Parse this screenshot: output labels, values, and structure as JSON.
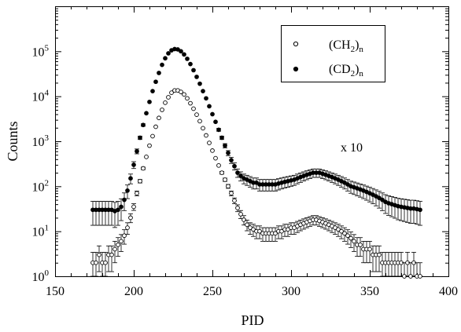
{
  "chart_data": {
    "type": "scatter",
    "title": "",
    "xlabel": "PID",
    "ylabel": "Counts",
    "xlim": [
      150,
      400
    ],
    "ylim": [
      1,
      1000000
    ],
    "yscale": "log",
    "x_ticks": [
      150,
      200,
      250,
      300,
      350,
      400
    ],
    "y_tick_exponents": [
      0,
      1,
      2,
      3,
      4,
      5
    ],
    "y_tick_base": "10",
    "grid": false,
    "legend": {
      "placement": "top-right",
      "entries": [
        {
          "main": "(CH",
          "sub": "2",
          "tail": ")",
          "tail_sub": "n",
          "marker": "open-circle"
        },
        {
          "main": "(CD",
          "sub": "2",
          "tail": ")",
          "tail_sub": "n",
          "marker": "filled-circle"
        }
      ]
    },
    "annotation": "x 10",
    "series": [
      {
        "marker": "filled-circle",
        "color": "#000000",
        "points": [
          [
            174,
            30
          ],
          [
            176,
            30
          ],
          [
            178,
            30
          ],
          [
            180,
            30
          ],
          [
            182,
            30
          ],
          [
            184,
            30
          ],
          [
            186,
            30
          ],
          [
            188,
            28
          ],
          [
            190,
            30
          ],
          [
            192,
            35
          ],
          [
            194,
            50
          ],
          [
            196,
            80
          ],
          [
            198,
            150
          ],
          [
            200,
            300
          ],
          [
            202,
            600
          ],
          [
            204,
            1200
          ],
          [
            206,
            2300
          ],
          [
            208,
            4200
          ],
          [
            210,
            7500
          ],
          [
            212,
            13000
          ],
          [
            214,
            21000
          ],
          [
            216,
            33000
          ],
          [
            218,
            50000
          ],
          [
            220,
            70000
          ],
          [
            222,
            90000
          ],
          [
            224,
            105000
          ],
          [
            226,
            112000
          ],
          [
            228,
            110000
          ],
          [
            230,
            100000
          ],
          [
            232,
            85000
          ],
          [
            234,
            68000
          ],
          [
            236,
            52000
          ],
          [
            238,
            38000
          ],
          [
            240,
            27000
          ],
          [
            242,
            19000
          ],
          [
            244,
            13000
          ],
          [
            246,
            9000
          ],
          [
            248,
            6000
          ],
          [
            250,
            4000
          ],
          [
            252,
            2700
          ],
          [
            254,
            1800
          ],
          [
            256,
            1200
          ],
          [
            258,
            800
          ],
          [
            260,
            550
          ],
          [
            262,
            380
          ],
          [
            264,
            280
          ],
          [
            266,
            200
          ],
          [
            268,
            170
          ],
          [
            270,
            150
          ],
          [
            272,
            140
          ],
          [
            274,
            130
          ],
          [
            276,
            120
          ],
          [
            278,
            120
          ],
          [
            280,
            110
          ],
          [
            282,
            110
          ],
          [
            284,
            110
          ],
          [
            286,
            110
          ],
          [
            288,
            110
          ],
          [
            290,
            110
          ],
          [
            292,
            115
          ],
          [
            294,
            120
          ],
          [
            296,
            125
          ],
          [
            298,
            130
          ],
          [
            300,
            135
          ],
          [
            302,
            140
          ],
          [
            304,
            150
          ],
          [
            306,
            160
          ],
          [
            308,
            170
          ],
          [
            310,
            180
          ],
          [
            312,
            190
          ],
          [
            314,
            200
          ],
          [
            316,
            200
          ],
          [
            318,
            200
          ],
          [
            320,
            190
          ],
          [
            322,
            180
          ],
          [
            324,
            170
          ],
          [
            326,
            160
          ],
          [
            328,
            150
          ],
          [
            330,
            140
          ],
          [
            332,
            130
          ],
          [
            334,
            120
          ],
          [
            336,
            110
          ],
          [
            338,
            100
          ],
          [
            340,
            95
          ],
          [
            342,
            90
          ],
          [
            344,
            85
          ],
          [
            346,
            80
          ],
          [
            348,
            75
          ],
          [
            350,
            70
          ],
          [
            352,
            65
          ],
          [
            354,
            60
          ],
          [
            356,
            55
          ],
          [
            358,
            50
          ],
          [
            360,
            45
          ],
          [
            362,
            42
          ],
          [
            364,
            40
          ],
          [
            366,
            38
          ],
          [
            368,
            36
          ],
          [
            370,
            35
          ],
          [
            372,
            34
          ],
          [
            374,
            33
          ],
          [
            376,
            32
          ],
          [
            378,
            32
          ],
          [
            380,
            31
          ],
          [
            382,
            30
          ]
        ]
      },
      {
        "marker": "open-circle",
        "color": "#000000",
        "points": [
          [
            174,
            2
          ],
          [
            176,
            2
          ],
          [
            178,
            3
          ],
          [
            180,
            2
          ],
          [
            182,
            2
          ],
          [
            184,
            3
          ],
          [
            186,
            3
          ],
          [
            188,
            4
          ],
          [
            190,
            5
          ],
          [
            192,
            6
          ],
          [
            194,
            8
          ],
          [
            196,
            12
          ],
          [
            198,
            20
          ],
          [
            200,
            35
          ],
          [
            202,
            70
          ],
          [
            204,
            130
          ],
          [
            206,
            250
          ],
          [
            208,
            450
          ],
          [
            210,
            800
          ],
          [
            212,
            1300
          ],
          [
            214,
            2100
          ],
          [
            216,
            3300
          ],
          [
            218,
            5000
          ],
          [
            220,
            7200
          ],
          [
            222,
            9500
          ],
          [
            224,
            12000
          ],
          [
            226,
            13500
          ],
          [
            228,
            13500
          ],
          [
            230,
            12500
          ],
          [
            232,
            11000
          ],
          [
            234,
            9000
          ],
          [
            236,
            7000
          ],
          [
            238,
            5300
          ],
          [
            240,
            3900
          ],
          [
            242,
            2800
          ],
          [
            244,
            1950
          ],
          [
            246,
            1350
          ],
          [
            248,
            920
          ],
          [
            250,
            620
          ],
          [
            252,
            420
          ],
          [
            254,
            290
          ],
          [
            256,
            200
          ],
          [
            258,
            140
          ],
          [
            260,
            100
          ],
          [
            262,
            70
          ],
          [
            264,
            48
          ],
          [
            266,
            33
          ],
          [
            268,
            24
          ],
          [
            270,
            18
          ],
          [
            272,
            14
          ],
          [
            274,
            12
          ],
          [
            276,
            11
          ],
          [
            278,
            10
          ],
          [
            280,
            10
          ],
          [
            282,
            9
          ],
          [
            284,
            9
          ],
          [
            286,
            9
          ],
          [
            288,
            9
          ],
          [
            290,
            9
          ],
          [
            292,
            10
          ],
          [
            294,
            10
          ],
          [
            296,
            11
          ],
          [
            298,
            11
          ],
          [
            300,
            12
          ],
          [
            302,
            12
          ],
          [
            304,
            13
          ],
          [
            306,
            14
          ],
          [
            308,
            15
          ],
          [
            310,
            16
          ],
          [
            312,
            17
          ],
          [
            314,
            18
          ],
          [
            316,
            18
          ],
          [
            318,
            17
          ],
          [
            320,
            16
          ],
          [
            322,
            15
          ],
          [
            324,
            14
          ],
          [
            326,
            13
          ],
          [
            328,
            12
          ],
          [
            330,
            11
          ],
          [
            332,
            10
          ],
          [
            334,
            9
          ],
          [
            336,
            8
          ],
          [
            338,
            7
          ],
          [
            340,
            6
          ],
          [
            342,
            5
          ],
          [
            344,
            5
          ],
          [
            346,
            4
          ],
          [
            348,
            4
          ],
          [
            350,
            4
          ],
          [
            352,
            3
          ],
          [
            354,
            3
          ],
          [
            356,
            3
          ],
          [
            358,
            2
          ],
          [
            360,
            2
          ],
          [
            362,
            2
          ],
          [
            364,
            2
          ],
          [
            366,
            2
          ],
          [
            368,
            2
          ],
          [
            370,
            2
          ],
          [
            372,
            1
          ],
          [
            374,
            2
          ],
          [
            376,
            1
          ],
          [
            378,
            2
          ],
          [
            380,
            1
          ],
          [
            382,
            1
          ]
        ]
      }
    ]
  }
}
